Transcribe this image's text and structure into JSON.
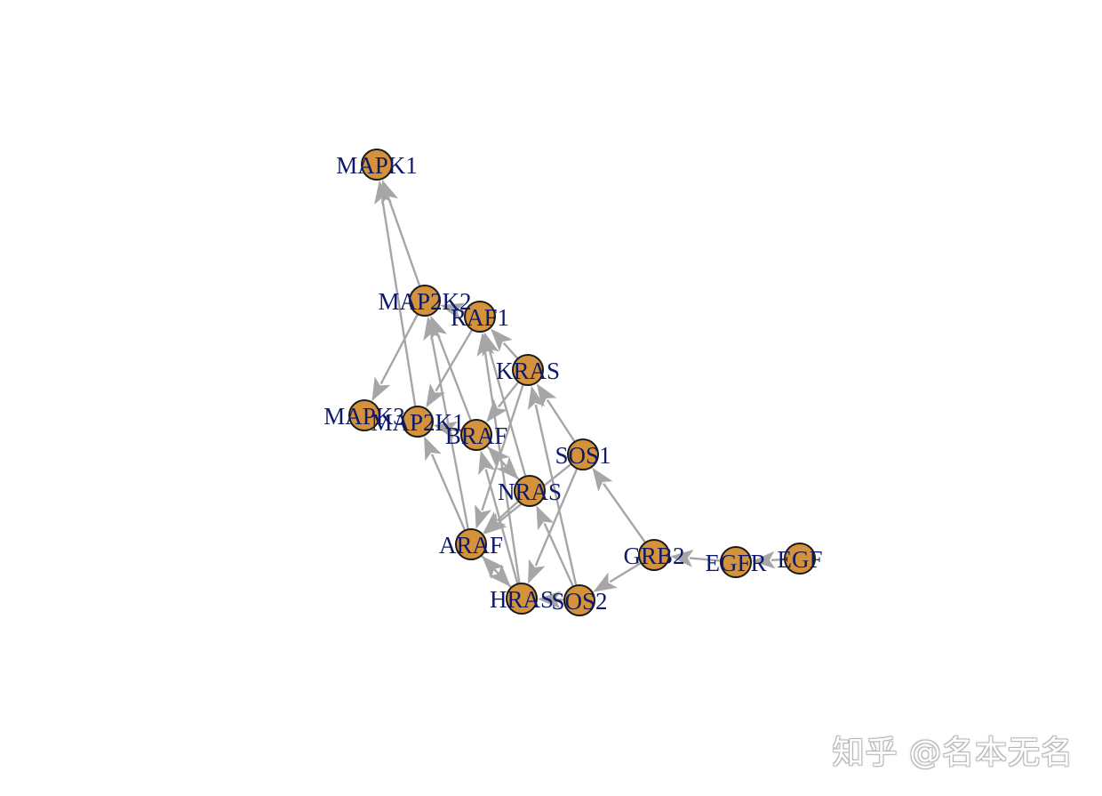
{
  "diagram": {
    "type": "directed-network",
    "colors": {
      "node_fill": "#d4933a",
      "node_stroke": "#1a1a1a",
      "label": "#0d1a6b",
      "edge": "#a6a6a6"
    },
    "nodes": [
      {
        "id": "MAPK1",
        "label": "MAPK1"
      },
      {
        "id": "MAP2K2",
        "label": "MAP2K2"
      },
      {
        "id": "RAF1",
        "label": "RAF1"
      },
      {
        "id": "KRAS",
        "label": "KRAS"
      },
      {
        "id": "MAPK3",
        "label": "MAPK3"
      },
      {
        "id": "MAP2K1",
        "label": "MAP2K1"
      },
      {
        "id": "BRAF",
        "label": "BRAF"
      },
      {
        "id": "SOS1",
        "label": "SOS1"
      },
      {
        "id": "NRAS",
        "label": "NRAS"
      },
      {
        "id": "ARAF",
        "label": "ARAF"
      },
      {
        "id": "GRB2",
        "label": "GRB2"
      },
      {
        "id": "EGFR",
        "label": "EGFR"
      },
      {
        "id": "EGF",
        "label": "EGF"
      },
      {
        "id": "HRAS",
        "label": "HRAS"
      },
      {
        "id": "SOS2",
        "label": "SOS2"
      }
    ],
    "edges": [
      {
        "from": "EGF",
        "to": "EGFR"
      },
      {
        "from": "EGFR",
        "to": "GRB2"
      },
      {
        "from": "GRB2",
        "to": "SOS1"
      },
      {
        "from": "GRB2",
        "to": "SOS2"
      },
      {
        "from": "SOS1",
        "to": "KRAS"
      },
      {
        "from": "SOS1",
        "to": "HRAS"
      },
      {
        "from": "SOS1",
        "to": "ARAF"
      },
      {
        "from": "SOS2",
        "to": "KRAS"
      },
      {
        "from": "SOS2",
        "to": "NRAS"
      },
      {
        "from": "SOS2",
        "to": "HRAS"
      },
      {
        "from": "KRAS",
        "to": "RAF1"
      },
      {
        "from": "KRAS",
        "to": "BRAF"
      },
      {
        "from": "KRAS",
        "to": "ARAF"
      },
      {
        "from": "NRAS",
        "to": "RAF1"
      },
      {
        "from": "NRAS",
        "to": "BRAF"
      },
      {
        "from": "NRAS",
        "to": "ARAF"
      },
      {
        "from": "HRAS",
        "to": "RAF1"
      },
      {
        "from": "HRAS",
        "to": "BRAF"
      },
      {
        "from": "HRAS",
        "to": "ARAF"
      },
      {
        "from": "RAF1",
        "to": "MAP2K1"
      },
      {
        "from": "RAF1",
        "to": "MAP2K2"
      },
      {
        "from": "BRAF",
        "to": "MAP2K1"
      },
      {
        "from": "BRAF",
        "to": "MAP2K2"
      },
      {
        "from": "BRAF",
        "to": "NRAS"
      },
      {
        "from": "ARAF",
        "to": "MAP2K1"
      },
      {
        "from": "ARAF",
        "to": "MAP2K2"
      },
      {
        "from": "ARAF",
        "to": "HRAS"
      },
      {
        "from": "MAP2K1",
        "to": "MAPK1"
      },
      {
        "from": "MAP2K2",
        "to": "MAPK1"
      },
      {
        "from": "MAP2K2",
        "to": "MAPK3"
      }
    ]
  },
  "watermark": {
    "text": "知乎 @名本无名"
  }
}
